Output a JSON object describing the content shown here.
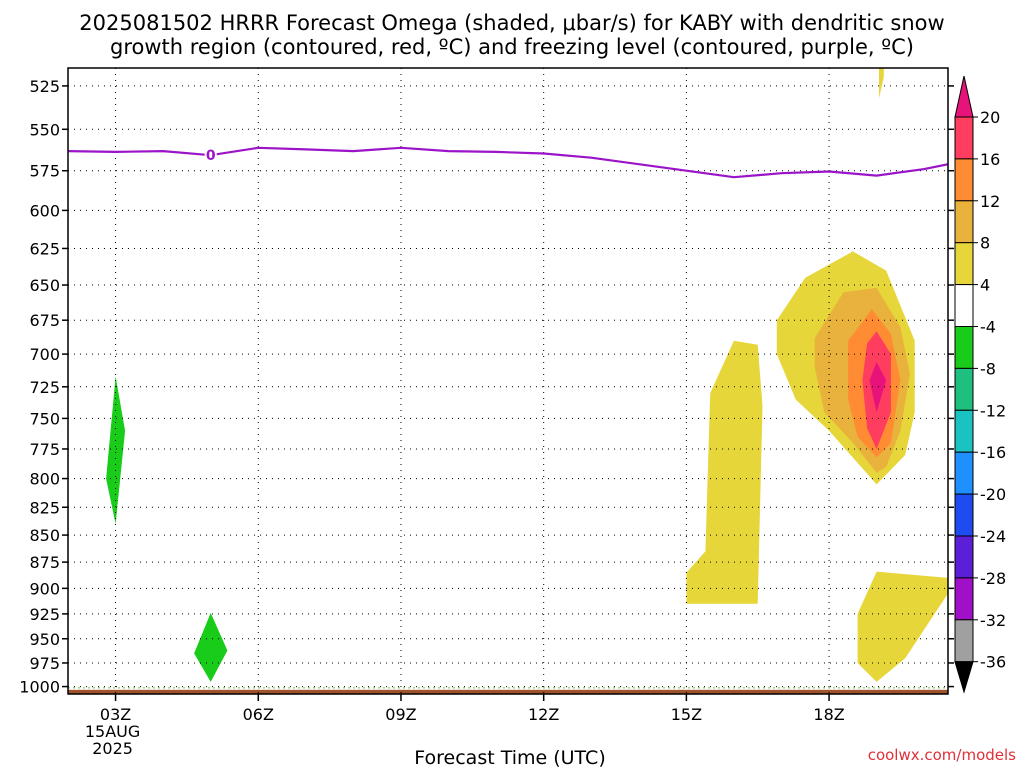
{
  "title_line1": "2025081502 HRRR Forecast Omega (shaded, μbar/s) for KABY with dendritic snow",
  "title_line2": "growth region (contoured, red, ºC) and freezing level (contoured, purple, ºC)",
  "credit": "coolwx.com/models",
  "chart_data": {
    "type": "heatmap",
    "title": "2025081502 HRRR Forecast Omega (shaded, μbar/s) for KABY with dendritic snow growth region (contoured, red, ºC) and freezing level (contoured, purple, ºC)",
    "xlabel": "Forecast Time (UTC)",
    "ylabel": "",
    "x_domain": [
      2,
      20.5
    ],
    "y_range": [
      515,
      1008
    ],
    "y_scale": "log-pressure",
    "y_ticks": [
      "525",
      "550",
      "575",
      "600",
      "625",
      "650",
      "675",
      "700",
      "725",
      "750",
      "775",
      "800",
      "825",
      "850",
      "875",
      "900",
      "925",
      "950",
      "975",
      "1000"
    ],
    "x_ticks": [
      {
        "hour": 3,
        "label": "03Z",
        "sub1": "15AUG",
        "sub2": "2025"
      },
      {
        "hour": 6,
        "label": "06Z"
      },
      {
        "hour": 9,
        "label": "09Z"
      },
      {
        "hour": 12,
        "label": "12Z"
      },
      {
        "hour": 15,
        "label": "15Z"
      },
      {
        "hour": 18,
        "label": "18Z"
      }
    ],
    "grid": true,
    "colorbar": {
      "labels": [
        "20",
        "16",
        "12",
        "8",
        "4",
        "-4",
        "-8",
        "-12",
        "-16",
        "-20",
        "-24",
        "-28",
        "-32",
        "-36"
      ],
      "colors": [
        "#ff3d5f",
        "#ff8c33",
        "#e8b23c",
        "#e6d63a",
        "#ffffff",
        "#19cc19",
        "#1fc07f",
        "#1ac2c2",
        "#1e90ff",
        "#1e4cf0",
        "#5a1fd6",
        "#a010c8",
        "#a0a0a0"
      ],
      "top_arrow_color": "#e8137a",
      "bottom_arrow_color": "#000000"
    },
    "freezing_level_contour": {
      "color": "#9b14c8",
      "label": "0",
      "label_hour": 5.0,
      "points": [
        [
          2.0,
          563
        ],
        [
          3.0,
          563.5
        ],
        [
          4.0,
          563
        ],
        [
          5.0,
          565.5
        ],
        [
          6.0,
          561
        ],
        [
          7.0,
          562
        ],
        [
          8.0,
          563
        ],
        [
          9.0,
          561
        ],
        [
          10.0,
          563
        ],
        [
          11.0,
          563.5
        ],
        [
          12.0,
          564.5
        ],
        [
          13.0,
          567
        ],
        [
          14.0,
          571
        ],
        [
          15.0,
          575
        ],
        [
          16.0,
          579
        ],
        [
          17.0,
          576.5
        ],
        [
          18.0,
          575.5
        ],
        [
          19.0,
          578
        ],
        [
          20.0,
          574
        ],
        [
          20.5,
          571
        ]
      ]
    },
    "omega_regions": [
      {
        "value": -6,
        "color": "#19cc19",
        "points": [
          [
            3.0,
            717
          ],
          [
            3.2,
            760
          ],
          [
            3.0,
            840
          ],
          [
            2.8,
            800
          ],
          [
            3.0,
            717
          ]
        ]
      },
      {
        "value": -6,
        "color": "#19cc19",
        "points": [
          [
            5.0,
            924
          ],
          [
            5.35,
            962
          ],
          [
            5.0,
            995
          ],
          [
            4.65,
            965
          ],
          [
            5.0,
            924
          ]
        ]
      },
      {
        "value": 6,
        "color": "#e6d63a",
        "points": [
          [
            15.0,
            885
          ],
          [
            15.4,
            865
          ],
          [
            15.5,
            730
          ],
          [
            16.0,
            690
          ],
          [
            16.5,
            693
          ],
          [
            16.6,
            740
          ],
          [
            16.5,
            915
          ],
          [
            15.0,
            915
          ],
          [
            15.0,
            885
          ]
        ]
      },
      {
        "value": 6,
        "color": "#e6d63a",
        "points": [
          [
            16.9,
            675
          ],
          [
            17.5,
            645
          ],
          [
            18.5,
            627
          ],
          [
            19.2,
            640
          ],
          [
            19.8,
            690
          ],
          [
            19.8,
            745
          ],
          [
            19.6,
            780
          ],
          [
            19.0,
            805
          ],
          [
            18.0,
            760
          ],
          [
            17.3,
            735
          ],
          [
            16.9,
            700
          ],
          [
            16.9,
            675
          ]
        ]
      },
      {
        "value": 6,
        "color": "#e6d63a",
        "points": [
          [
            18.6,
            925
          ],
          [
            19.0,
            884
          ],
          [
            20.5,
            890
          ],
          [
            20.5,
            905
          ],
          [
            19.6,
            970
          ],
          [
            19.0,
            995
          ],
          [
            18.6,
            975
          ],
          [
            18.6,
            925
          ]
        ]
      },
      {
        "value": 6,
        "color": "#e6d63a",
        "points": [
          [
            19.05,
            513
          ],
          [
            19.15,
            513
          ],
          [
            19.15,
            520
          ],
          [
            19.05,
            532
          ],
          [
            19.05,
            513
          ]
        ]
      },
      {
        "value": 10,
        "color": "#e8b23c",
        "points": [
          [
            17.7,
            688
          ],
          [
            18.3,
            655
          ],
          [
            19.0,
            652
          ],
          [
            19.5,
            680
          ],
          [
            19.7,
            715
          ],
          [
            19.5,
            760
          ],
          [
            19.2,
            790
          ],
          [
            19.0,
            795
          ],
          [
            18.5,
            770
          ],
          [
            17.9,
            745
          ],
          [
            17.7,
            710
          ],
          [
            17.7,
            688
          ]
        ]
      },
      {
        "value": 14,
        "color": "#ff8c33",
        "points": [
          [
            18.4,
            690
          ],
          [
            18.9,
            667
          ],
          [
            19.3,
            685
          ],
          [
            19.5,
            720
          ],
          [
            19.3,
            770
          ],
          [
            19.0,
            782
          ],
          [
            18.6,
            765
          ],
          [
            18.4,
            735
          ],
          [
            18.4,
            690
          ]
        ]
      },
      {
        "value": 18,
        "color": "#ff3d5f",
        "points": [
          [
            18.8,
            692
          ],
          [
            19.0,
            683
          ],
          [
            19.3,
            700
          ],
          [
            19.3,
            745
          ],
          [
            19.0,
            775
          ],
          [
            18.8,
            758
          ],
          [
            18.7,
            720
          ],
          [
            18.8,
            692
          ]
        ]
      },
      {
        "value": 22,
        "color": "#e8137a",
        "points": [
          [
            19.0,
            706
          ],
          [
            19.2,
            720
          ],
          [
            19.0,
            745
          ],
          [
            18.85,
            720
          ],
          [
            19.0,
            706
          ]
        ]
      }
    ],
    "surface_band": {
      "color": "#a0522d",
      "pressure_top": 1003.5,
      "pressure_bottom": 1008
    }
  }
}
